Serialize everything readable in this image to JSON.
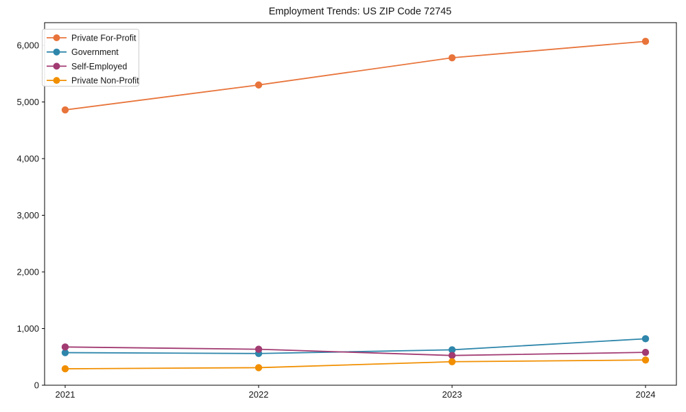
{
  "chart_data": {
    "type": "line",
    "title": "Employment Trends: US ZIP Code 72745",
    "xlabel": "",
    "ylabel": "",
    "x_tick_labels": [
      "2021",
      "2022",
      "2023",
      "2024"
    ],
    "y_ticks": [
      0,
      1000,
      2000,
      3000,
      4000,
      5000,
      6000
    ],
    "y_tick_labels": [
      "0",
      "1,000",
      "2,000",
      "3,000",
      "4,000",
      "5,000",
      "6,000"
    ],
    "ylim": [
      0,
      6400
    ],
    "grid": false,
    "legend_position": "upper-left",
    "marker": "circle",
    "series": [
      {
        "name": "Private For-Profit",
        "color": "#e8743b",
        "values": [
          4860,
          5300,
          5780,
          6070
        ]
      },
      {
        "name": "Government",
        "color": "#2e86ab",
        "values": [
          575,
          560,
          625,
          820
        ]
      },
      {
        "name": "Self-Employed",
        "color": "#a23b72",
        "values": [
          675,
          635,
          525,
          580
        ]
      },
      {
        "name": "Private Non-Profit",
        "color": "#f18f01",
        "values": [
          290,
          310,
          415,
          445
        ]
      }
    ]
  }
}
